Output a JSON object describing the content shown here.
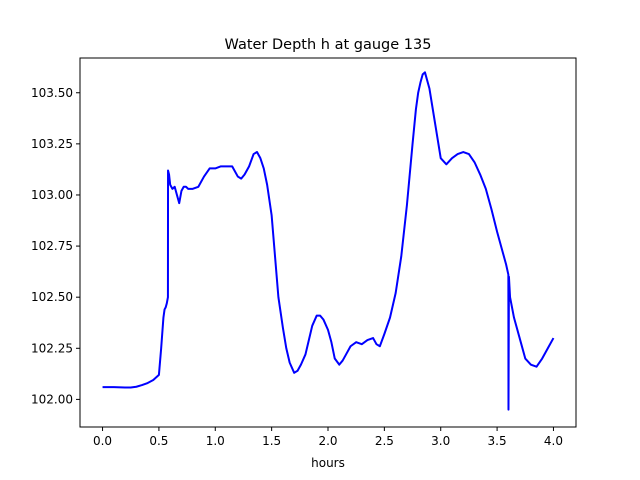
{
  "chart_data": {
    "type": "line",
    "title": "Water Depth h at gauge 135",
    "xlabel": "hours",
    "ylabel": "",
    "xlim": [
      -0.2,
      4.2
    ],
    "ylim": [
      101.865,
      103.67
    ],
    "grid": false,
    "xticks": [
      0.0,
      0.5,
      1.0,
      1.5,
      2.0,
      2.5,
      3.0,
      3.5,
      4.0
    ],
    "xtick_labels": [
      "0.0",
      "0.5",
      "1.0",
      "1.5",
      "2.0",
      "2.5",
      "3.0",
      "3.5",
      "4.0"
    ],
    "yticks": [
      102.0,
      102.25,
      102.5,
      102.75,
      103.0,
      103.25,
      103.5
    ],
    "ytick_labels": [
      "102.00",
      "102.25",
      "102.50",
      "102.75",
      "103.00",
      "103.25",
      "103.50"
    ],
    "series": [
      {
        "color": "#0000ff",
        "x": [
          0.0,
          0.1,
          0.2,
          0.25,
          0.3,
          0.35,
          0.4,
          0.45,
          0.5,
          0.52,
          0.54,
          0.55,
          0.56,
          0.57,
          0.58,
          0.581,
          0.59,
          0.6,
          0.62,
          0.64,
          0.66,
          0.68,
          0.7,
          0.72,
          0.74,
          0.76,
          0.8,
          0.85,
          0.9,
          0.95,
          1.0,
          1.05,
          1.1,
          1.15,
          1.2,
          1.23,
          1.26,
          1.3,
          1.34,
          1.37,
          1.4,
          1.43,
          1.46,
          1.5,
          1.53,
          1.56,
          1.6,
          1.63,
          1.66,
          1.7,
          1.73,
          1.76,
          1.8,
          1.83,
          1.86,
          1.9,
          1.93,
          1.96,
          2.0,
          2.03,
          2.06,
          2.1,
          2.13,
          2.16,
          2.2,
          2.25,
          2.3,
          2.35,
          2.4,
          2.43,
          2.46,
          2.5,
          2.55,
          2.6,
          2.65,
          2.7,
          2.75,
          2.78,
          2.8,
          2.82,
          2.84,
          2.86,
          2.9,
          2.95,
          3.0,
          3.05,
          3.1,
          3.15,
          3.2,
          3.25,
          3.3,
          3.35,
          3.4,
          3.45,
          3.5,
          3.55,
          3.58,
          3.6,
          3.601,
          3.605,
          3.61,
          3.615,
          3.65,
          3.7,
          3.75,
          3.8,
          3.85,
          3.9,
          3.95,
          4.0
        ],
        "y": [
          102.06,
          102.06,
          102.058,
          102.058,
          102.062,
          102.07,
          102.08,
          102.095,
          102.12,
          102.25,
          102.4,
          102.44,
          102.45,
          102.47,
          102.5,
          103.12,
          103.1,
          103.05,
          103.03,
          103.04,
          103.0,
          102.96,
          103.02,
          103.04,
          103.04,
          103.03,
          103.03,
          103.04,
          103.09,
          103.13,
          103.13,
          103.14,
          103.14,
          103.14,
          103.09,
          103.08,
          103.1,
          103.14,
          103.2,
          103.21,
          103.18,
          103.13,
          103.05,
          102.9,
          102.7,
          102.5,
          102.35,
          102.25,
          102.18,
          102.13,
          102.14,
          102.17,
          102.22,
          102.29,
          102.36,
          102.41,
          102.41,
          102.39,
          102.34,
          102.28,
          102.2,
          102.17,
          102.19,
          102.22,
          102.26,
          102.28,
          102.27,
          102.29,
          102.3,
          102.27,
          102.26,
          102.32,
          102.4,
          102.52,
          102.7,
          102.95,
          103.25,
          103.42,
          103.5,
          103.55,
          103.59,
          103.6,
          103.52,
          103.35,
          103.18,
          103.15,
          103.18,
          103.2,
          103.21,
          103.2,
          103.16,
          103.1,
          103.03,
          102.93,
          102.82,
          102.72,
          102.66,
          102.61,
          101.95,
          102.6,
          102.55,
          102.5,
          102.4,
          102.3,
          102.2,
          102.17,
          102.16,
          102.2,
          102.25,
          102.3
        ]
      }
    ]
  }
}
